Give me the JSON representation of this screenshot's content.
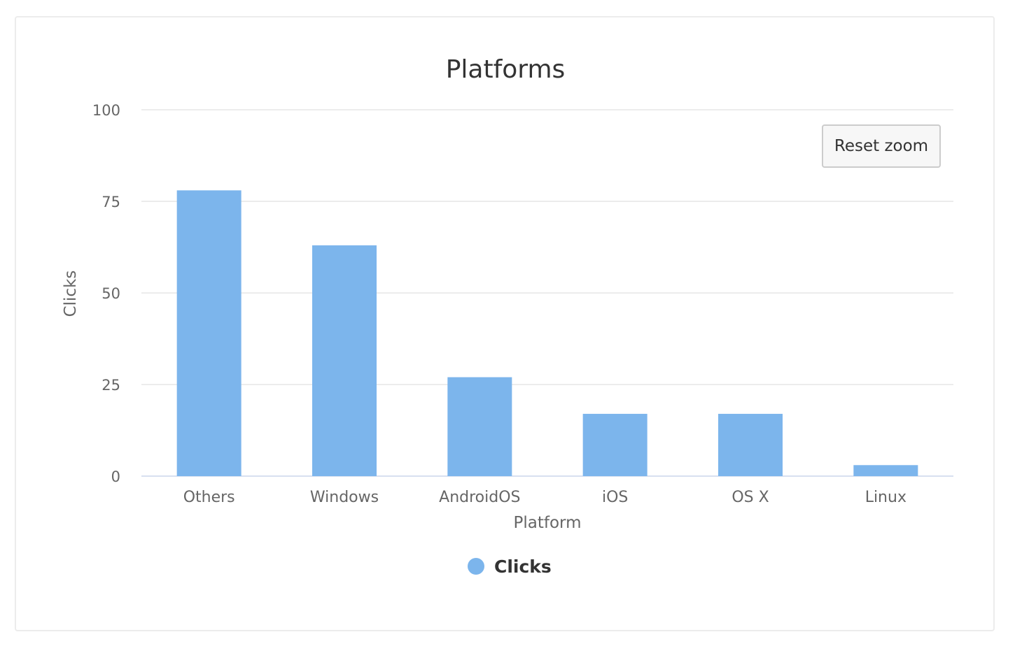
{
  "chart_data": {
    "type": "bar",
    "title": "Platforms",
    "xlabel": "Platform",
    "ylabel": "Clicks",
    "categories": [
      "Others",
      "Windows",
      "AndroidOS",
      "iOS",
      "OS X",
      "Linux"
    ],
    "series": [
      {
        "name": "Clicks",
        "values": [
          78,
          63,
          27,
          17,
          17,
          3
        ],
        "color": "#7cb5ec"
      }
    ],
    "ylim": [
      0,
      100
    ],
    "yticks": [
      "0",
      "25",
      "50",
      "75",
      "100"
    ],
    "grid": true,
    "legend": "bottom-center"
  },
  "reset_zoom_label": "Reset zoom"
}
